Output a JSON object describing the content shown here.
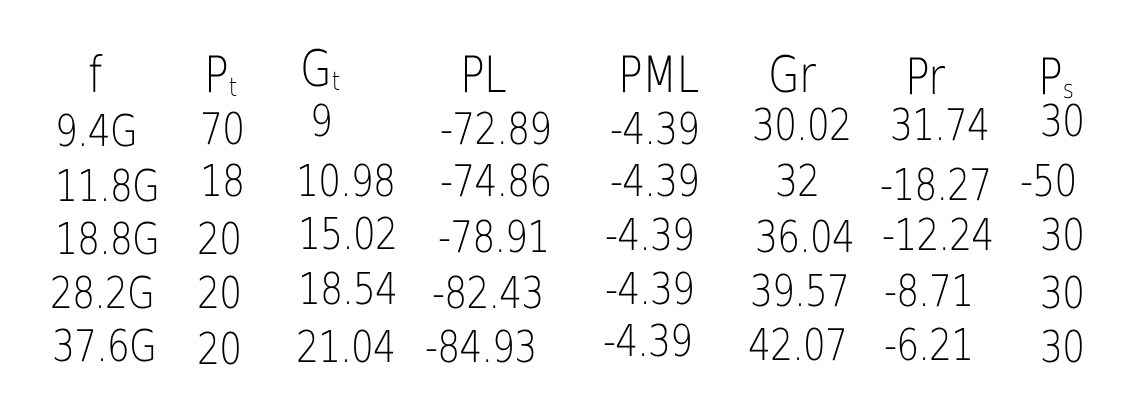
{
  "table": {
    "headers": [
      {
        "main": "f",
        "sub": ""
      },
      {
        "main": "P",
        "sub": "t"
      },
      {
        "main": "G",
        "sub": "t"
      },
      {
        "main": "PL",
        "sub": ""
      },
      {
        "main": "PML",
        "sub": ""
      },
      {
        "main": "Gr",
        "sub": ""
      },
      {
        "main": "Pr",
        "sub": ""
      },
      {
        "main": "P",
        "sub": "s"
      }
    ],
    "rows": [
      [
        "9.4G",
        "70",
        "9",
        "-72.89",
        "-4.39",
        "30.02",
        "31.74",
        "30"
      ],
      [
        "11.8G",
        "18",
        "10.98",
        "-74.86",
        "-4.39",
        "32",
        "-18.27",
        "-50"
      ],
      [
        "18.8G",
        "20",
        "15.02",
        "-78.91",
        "-4.39",
        "36.04",
        "-12.24",
        "30"
      ],
      [
        "28.2G",
        "20",
        "18.54",
        "-82.43",
        "-4.39",
        "39.57",
        "-8.71",
        "30"
      ],
      [
        "37.6G",
        "20",
        "21.04",
        "-84.93",
        "-4.39",
        "42.07",
        "-6.21",
        "30"
      ]
    ]
  }
}
